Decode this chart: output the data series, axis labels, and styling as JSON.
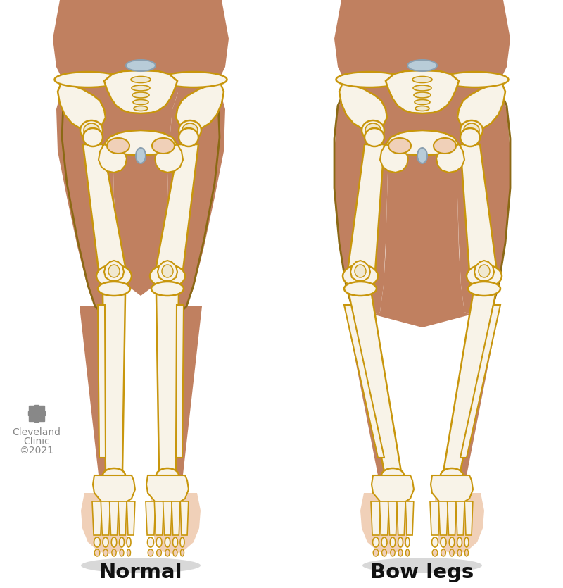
{
  "background_color": "#ffffff",
  "skin_dark": "#b07050",
  "skin_mid": "#c08060",
  "skin_light": "#e8c0a0",
  "skin_very_light": "#f0d0b8",
  "bone_fill": "#f8f3e8",
  "bone_mid": "#f0e8d0",
  "bone_outline": "#c8960c",
  "bone_dark_outline": "#8B6914",
  "cartilage_color": "#b8ccd8",
  "cartilage_outline": "#8a9faf",
  "shadow_color": "#cccccc",
  "text_color": "#111111",
  "logo_color": "#888888",
  "label_normal": "Normal",
  "label_bow": "Bow legs",
  "clinic_line1": "Cleveland",
  "clinic_line2": "Clinic",
  "clinic_year": "©2021",
  "title_fontsize": 21,
  "logo_fontsize": 10
}
